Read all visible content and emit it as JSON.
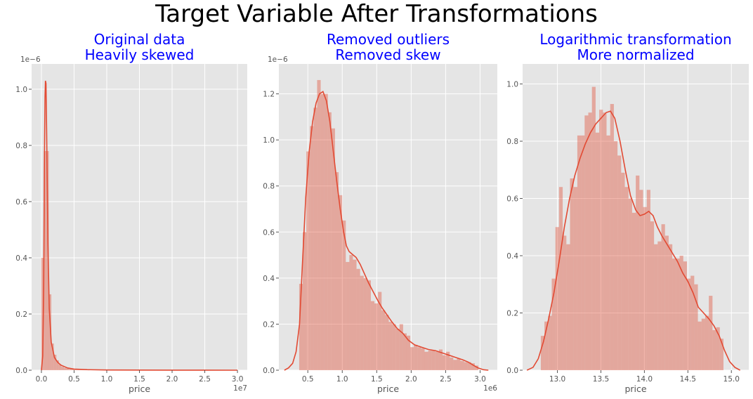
{
  "figure": {
    "suptitle": "Target Variable After Transformations",
    "title_color": "#0000ff",
    "face_color": "#e5e5e5",
    "grid_color": "#ffffff",
    "line_color": "#e24a33",
    "bar_color": "#e24a33",
    "bar_opacity": 0.4
  },
  "chart_data": [
    {
      "type": "bar",
      "title": "Original data\nHeavily skewed",
      "xlabel": "price",
      "ylabel": "",
      "x_offset_text": "1e7",
      "y_offset_text": "1e−6",
      "xlim": [
        -0.15,
        3.15
      ],
      "ylim": [
        0,
        1.09
      ],
      "xticks": [
        0.0,
        0.5,
        1.0,
        1.5,
        2.0,
        2.5,
        3.0
      ],
      "xtick_labels": [
        "0.0",
        "0.5",
        "1.0",
        "1.5",
        "2.0",
        "2.5",
        "3.0"
      ],
      "yticks": [
        0.0,
        0.2,
        0.4,
        0.6,
        0.8,
        1.0
      ],
      "ytick_labels": [
        "0.0",
        "0.2",
        "0.4",
        "0.6",
        "0.8",
        "1.0"
      ],
      "grid": true,
      "bin_width": 0.0385,
      "histogram": [
        {
          "x": 0.017,
          "y": 0.4
        },
        {
          "x": 0.0555,
          "y": 0.78
        },
        {
          "x": 0.094,
          "y": 0.78
        },
        {
          "x": 0.1325,
          "y": 0.27
        },
        {
          "x": 0.171,
          "y": 0.095
        },
        {
          "x": 0.2095,
          "y": 0.055
        },
        {
          "x": 0.248,
          "y": 0.035
        },
        {
          "x": 0.2865,
          "y": 0.02
        },
        {
          "x": 0.325,
          "y": 0.012
        },
        {
          "x": 0.3635,
          "y": 0.008
        },
        {
          "x": 0.402,
          "y": 0.006
        },
        {
          "x": 0.4405,
          "y": 0.004
        },
        {
          "x": 0.479,
          "y": 0.003
        },
        {
          "x": 0.5175,
          "y": 0.002
        },
        {
          "x": 0.556,
          "y": 0.0015
        },
        {
          "x": 0.5945,
          "y": 0.001
        },
        {
          "x": 0.633,
          "y": 0.001
        },
        {
          "x": 0.6715,
          "y": 0.0008
        },
        {
          "x": 0.71,
          "y": 0.0006
        },
        {
          "x": 0.7485,
          "y": 0.0005
        }
      ],
      "kde": [
        {
          "x": 0.0,
          "y": 0.0
        },
        {
          "x": 0.02,
          "y": 0.05
        },
        {
          "x": 0.035,
          "y": 0.3
        },
        {
          "x": 0.045,
          "y": 0.72
        },
        {
          "x": 0.055,
          "y": 0.97
        },
        {
          "x": 0.062,
          "y": 1.03
        },
        {
          "x": 0.07,
          "y": 1.02
        },
        {
          "x": 0.08,
          "y": 0.85
        },
        {
          "x": 0.09,
          "y": 0.65
        },
        {
          "x": 0.1,
          "y": 0.45
        },
        {
          "x": 0.12,
          "y": 0.22
        },
        {
          "x": 0.15,
          "y": 0.1
        },
        {
          "x": 0.2,
          "y": 0.045
        },
        {
          "x": 0.25,
          "y": 0.028
        },
        {
          "x": 0.3,
          "y": 0.018
        },
        {
          "x": 0.4,
          "y": 0.008
        },
        {
          "x": 0.5,
          "y": 0.004
        },
        {
          "x": 0.7,
          "y": 0.002
        },
        {
          "x": 1.0,
          "y": 0.0008
        },
        {
          "x": 1.5,
          "y": 0.0004
        },
        {
          "x": 2.0,
          "y": 0.0002
        },
        {
          "x": 2.5,
          "y": 0.0001
        },
        {
          "x": 3.0,
          "y": 0.0
        }
      ]
    },
    {
      "type": "bar",
      "title": "Removed outliers\nRemoved skew",
      "xlabel": "price",
      "ylabel": "",
      "x_offset_text": "1e6",
      "y_offset_text": "1e−6",
      "xlim": [
        0.08,
        3.25
      ],
      "ylim": [
        0,
        1.33
      ],
      "xticks": [
        0.5,
        1.0,
        1.5,
        2.0,
        2.5,
        3.0
      ],
      "xtick_labels": [
        "0.5",
        "1.0",
        "1.5",
        "2.0",
        "2.5",
        "3.0"
      ],
      "yticks": [
        0.0,
        0.2,
        0.4,
        0.6,
        0.8,
        1.0,
        1.2
      ],
      "ytick_labels": [
        "0.0",
        "0.2",
        "0.4",
        "0.6",
        "0.8",
        "1.0",
        "1.2"
      ],
      "grid": true,
      "bin_width": 0.052,
      "histogram": [
        {
          "x": 0.401,
          "y": 0.375
        },
        {
          "x": 0.453,
          "y": 0.6
        },
        {
          "x": 0.505,
          "y": 0.95
        },
        {
          "x": 0.557,
          "y": 1.06
        },
        {
          "x": 0.609,
          "y": 1.14
        },
        {
          "x": 0.661,
          "y": 1.26
        },
        {
          "x": 0.713,
          "y": 1.2
        },
        {
          "x": 0.765,
          "y": 1.2
        },
        {
          "x": 0.817,
          "y": 1.12
        },
        {
          "x": 0.869,
          "y": 1.05
        },
        {
          "x": 0.921,
          "y": 0.86
        },
        {
          "x": 0.973,
          "y": 0.76
        },
        {
          "x": 1.025,
          "y": 0.65
        },
        {
          "x": 1.077,
          "y": 0.47
        },
        {
          "x": 1.129,
          "y": 0.5
        },
        {
          "x": 1.181,
          "y": 0.48
        },
        {
          "x": 1.233,
          "y": 0.44
        },
        {
          "x": 1.285,
          "y": 0.41
        },
        {
          "x": 1.337,
          "y": 0.4
        },
        {
          "x": 1.389,
          "y": 0.39
        },
        {
          "x": 1.441,
          "y": 0.3
        },
        {
          "x": 1.493,
          "y": 0.29
        },
        {
          "x": 1.545,
          "y": 0.34
        },
        {
          "x": 1.597,
          "y": 0.26
        },
        {
          "x": 1.649,
          "y": 0.24
        },
        {
          "x": 1.701,
          "y": 0.21
        },
        {
          "x": 1.753,
          "y": 0.2
        },
        {
          "x": 1.805,
          "y": 0.18
        },
        {
          "x": 1.857,
          "y": 0.2
        },
        {
          "x": 1.909,
          "y": 0.16
        },
        {
          "x": 1.961,
          "y": 0.15
        },
        {
          "x": 2.013,
          "y": 0.1
        },
        {
          "x": 2.065,
          "y": 0.11
        },
        {
          "x": 2.117,
          "y": 0.1
        },
        {
          "x": 2.169,
          "y": 0.095
        },
        {
          "x": 2.221,
          "y": 0.08
        },
        {
          "x": 2.273,
          "y": 0.085
        },
        {
          "x": 2.325,
          "y": 0.085
        },
        {
          "x": 2.377,
          "y": 0.08
        },
        {
          "x": 2.429,
          "y": 0.09
        },
        {
          "x": 2.481,
          "y": 0.065
        },
        {
          "x": 2.533,
          "y": 0.08
        },
        {
          "x": 2.585,
          "y": 0.055
        },
        {
          "x": 2.637,
          "y": 0.045
        },
        {
          "x": 2.689,
          "y": 0.05
        },
        {
          "x": 2.741,
          "y": 0.04
        },
        {
          "x": 2.793,
          "y": 0.035
        },
        {
          "x": 2.845,
          "y": 0.035
        },
        {
          "x": 2.897,
          "y": 0.03
        },
        {
          "x": 2.949,
          "y": 0.02
        }
      ],
      "kde": [
        {
          "x": 0.16,
          "y": 0.0
        },
        {
          "x": 0.22,
          "y": 0.01
        },
        {
          "x": 0.28,
          "y": 0.03
        },
        {
          "x": 0.33,
          "y": 0.08
        },
        {
          "x": 0.38,
          "y": 0.2
        },
        {
          "x": 0.42,
          "y": 0.45
        },
        {
          "x": 0.47,
          "y": 0.75
        },
        {
          "x": 0.52,
          "y": 0.95
        },
        {
          "x": 0.57,
          "y": 1.08
        },
        {
          "x": 0.62,
          "y": 1.16
        },
        {
          "x": 0.67,
          "y": 1.2
        },
        {
          "x": 0.72,
          "y": 1.21
        },
        {
          "x": 0.77,
          "y": 1.17
        },
        {
          "x": 0.82,
          "y": 1.08
        },
        {
          "x": 0.87,
          "y": 0.95
        },
        {
          "x": 0.92,
          "y": 0.82
        },
        {
          "x": 0.97,
          "y": 0.7
        },
        {
          "x": 1.02,
          "y": 0.6
        },
        {
          "x": 1.06,
          "y": 0.54
        },
        {
          "x": 1.1,
          "y": 0.515
        },
        {
          "x": 1.14,
          "y": 0.505
        },
        {
          "x": 1.2,
          "y": 0.49
        },
        {
          "x": 1.26,
          "y": 0.46
        },
        {
          "x": 1.32,
          "y": 0.42
        },
        {
          "x": 1.38,
          "y": 0.38
        },
        {
          "x": 1.45,
          "y": 0.34
        },
        {
          "x": 1.52,
          "y": 0.3
        },
        {
          "x": 1.58,
          "y": 0.27
        },
        {
          "x": 1.65,
          "y": 0.24
        },
        {
          "x": 1.72,
          "y": 0.21
        },
        {
          "x": 1.8,
          "y": 0.18
        },
        {
          "x": 1.88,
          "y": 0.16
        },
        {
          "x": 1.96,
          "y": 0.13
        },
        {
          "x": 2.05,
          "y": 0.11
        },
        {
          "x": 2.15,
          "y": 0.1
        },
        {
          "x": 2.25,
          "y": 0.09
        },
        {
          "x": 2.35,
          "y": 0.085
        },
        {
          "x": 2.45,
          "y": 0.075
        },
        {
          "x": 2.55,
          "y": 0.065
        },
        {
          "x": 2.65,
          "y": 0.055
        },
        {
          "x": 2.75,
          "y": 0.045
        },
        {
          "x": 2.83,
          "y": 0.035
        },
        {
          "x": 2.9,
          "y": 0.022
        },
        {
          "x": 2.97,
          "y": 0.01
        },
        {
          "x": 3.05,
          "y": 0.002
        },
        {
          "x": 3.12,
          "y": 0.0
        }
      ]
    },
    {
      "type": "bar",
      "title": "Logarithmic transformation\nMore normalized",
      "xlabel": "price",
      "ylabel": "",
      "x_offset_text": "",
      "y_offset_text": "",
      "xlim": [
        12.6,
        15.2
      ],
      "ylim": [
        0,
        1.07
      ],
      "xticks": [
        13.0,
        13.5,
        14.0,
        14.5,
        15.0
      ],
      "xtick_labels": [
        "13.0",
        "13.5",
        "14.0",
        "14.5",
        "15.0"
      ],
      "yticks": [
        0.0,
        0.2,
        0.4,
        0.6,
        0.8,
        1.0
      ],
      "ytick_labels": [
        "0.0",
        "0.2",
        "0.4",
        "0.6",
        "0.8",
        "1.0"
      ],
      "grid": true,
      "bin_width": 0.042,
      "histogram": [
        {
          "x": 12.83,
          "y": 0.12
        },
        {
          "x": 12.872,
          "y": 0.17
        },
        {
          "x": 12.914,
          "y": 0.19
        },
        {
          "x": 12.956,
          "y": 0.32
        },
        {
          "x": 12.998,
          "y": 0.5
        },
        {
          "x": 13.04,
          "y": 0.64
        },
        {
          "x": 13.082,
          "y": 0.47
        },
        {
          "x": 13.124,
          "y": 0.44
        },
        {
          "x": 13.166,
          "y": 0.67
        },
        {
          "x": 13.208,
          "y": 0.64
        },
        {
          "x": 13.25,
          "y": 0.82
        },
        {
          "x": 13.292,
          "y": 0.82
        },
        {
          "x": 13.334,
          "y": 0.89
        },
        {
          "x": 13.376,
          "y": 0.9
        },
        {
          "x": 13.418,
          "y": 0.99
        },
        {
          "x": 13.46,
          "y": 0.83
        },
        {
          "x": 13.502,
          "y": 0.91
        },
        {
          "x": 13.544,
          "y": 0.9
        },
        {
          "x": 13.586,
          "y": 0.82
        },
        {
          "x": 13.628,
          "y": 0.93
        },
        {
          "x": 13.67,
          "y": 0.8
        },
        {
          "x": 13.712,
          "y": 0.75
        },
        {
          "x": 13.754,
          "y": 0.69
        },
        {
          "x": 13.796,
          "y": 0.64
        },
        {
          "x": 13.838,
          "y": 0.6
        },
        {
          "x": 13.88,
          "y": 0.55
        },
        {
          "x": 13.922,
          "y": 0.68
        },
        {
          "x": 13.964,
          "y": 0.63
        },
        {
          "x": 14.006,
          "y": 0.57
        },
        {
          "x": 14.048,
          "y": 0.63
        },
        {
          "x": 14.09,
          "y": 0.52
        },
        {
          "x": 14.132,
          "y": 0.44
        },
        {
          "x": 14.174,
          "y": 0.45
        },
        {
          "x": 14.216,
          "y": 0.51
        },
        {
          "x": 14.258,
          "y": 0.47
        },
        {
          "x": 14.3,
          "y": 0.44
        },
        {
          "x": 14.342,
          "y": 0.39
        },
        {
          "x": 14.384,
          "y": 0.39
        },
        {
          "x": 14.426,
          "y": 0.4
        },
        {
          "x": 14.468,
          "y": 0.38
        },
        {
          "x": 14.51,
          "y": 0.32
        },
        {
          "x": 14.552,
          "y": 0.33
        },
        {
          "x": 14.594,
          "y": 0.3
        },
        {
          "x": 14.636,
          "y": 0.17
        },
        {
          "x": 14.678,
          "y": 0.18
        },
        {
          "x": 14.72,
          "y": 0.19
        },
        {
          "x": 14.762,
          "y": 0.26
        },
        {
          "x": 14.804,
          "y": 0.14
        },
        {
          "x": 14.846,
          "y": 0.15
        },
        {
          "x": 14.888,
          "y": 0.11
        }
      ],
      "kde": [
        {
          "x": 12.65,
          "y": 0.0
        },
        {
          "x": 12.72,
          "y": 0.01
        },
        {
          "x": 12.78,
          "y": 0.04
        },
        {
          "x": 12.84,
          "y": 0.1
        },
        {
          "x": 12.9,
          "y": 0.18
        },
        {
          "x": 12.96,
          "y": 0.27
        },
        {
          "x": 13.02,
          "y": 0.38
        },
        {
          "x": 13.08,
          "y": 0.5
        },
        {
          "x": 13.14,
          "y": 0.6
        },
        {
          "x": 13.2,
          "y": 0.68
        },
        {
          "x": 13.26,
          "y": 0.74
        },
        {
          "x": 13.32,
          "y": 0.79
        },
        {
          "x": 13.38,
          "y": 0.83
        },
        {
          "x": 13.44,
          "y": 0.86
        },
        {
          "x": 13.5,
          "y": 0.88
        },
        {
          "x": 13.56,
          "y": 0.9
        },
        {
          "x": 13.61,
          "y": 0.905
        },
        {
          "x": 13.66,
          "y": 0.88
        },
        {
          "x": 13.72,
          "y": 0.8
        },
        {
          "x": 13.78,
          "y": 0.7
        },
        {
          "x": 13.84,
          "y": 0.61
        },
        {
          "x": 13.9,
          "y": 0.56
        },
        {
          "x": 13.95,
          "y": 0.54
        },
        {
          "x": 14.0,
          "y": 0.545
        },
        {
          "x": 14.05,
          "y": 0.555
        },
        {
          "x": 14.1,
          "y": 0.54
        },
        {
          "x": 14.15,
          "y": 0.5
        },
        {
          "x": 14.2,
          "y": 0.47
        },
        {
          "x": 14.26,
          "y": 0.44
        },
        {
          "x": 14.32,
          "y": 0.41
        },
        {
          "x": 14.38,
          "y": 0.38
        },
        {
          "x": 14.44,
          "y": 0.34
        },
        {
          "x": 14.5,
          "y": 0.31
        },
        {
          "x": 14.56,
          "y": 0.27
        },
        {
          "x": 14.62,
          "y": 0.22
        },
        {
          "x": 14.68,
          "y": 0.2
        },
        {
          "x": 14.74,
          "y": 0.18
        },
        {
          "x": 14.8,
          "y": 0.155
        },
        {
          "x": 14.86,
          "y": 0.12
        },
        {
          "x": 14.92,
          "y": 0.07
        },
        {
          "x": 14.98,
          "y": 0.03
        },
        {
          "x": 15.04,
          "y": 0.01
        },
        {
          "x": 15.1,
          "y": 0.0
        }
      ]
    }
  ]
}
